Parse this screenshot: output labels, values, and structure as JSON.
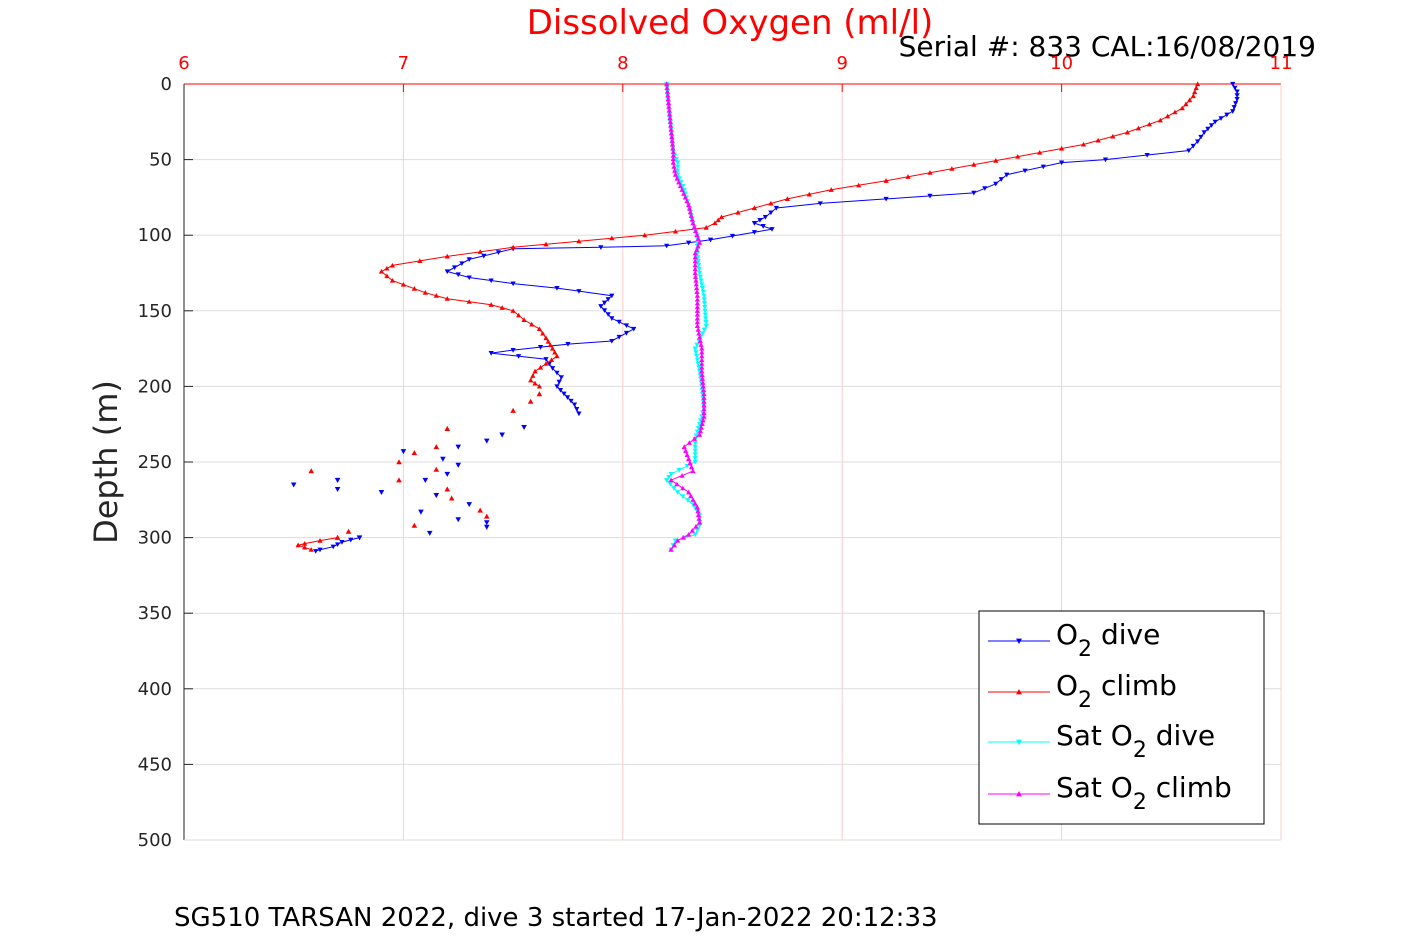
{
  "chart_data": {
    "type": "line",
    "title": "Dissolved Oxygen (ml/l)",
    "subtitle": "Serial #: 833  CAL:16/08/2019",
    "caption": "SG510 TARSAN 2022, dive 3 started 17-Jan-2022 20:12:33",
    "ylabel": "Depth (m)",
    "xlim": [
      6,
      11
    ],
    "ylim": [
      0,
      500
    ],
    "y_reversed": true,
    "x_axis_position": "top",
    "x_ticks": [
      "6",
      "7",
      "8",
      "9",
      "10",
      "11"
    ],
    "y_ticks": [
      "0",
      "50",
      "100",
      "150",
      "200",
      "250",
      "300",
      "350",
      "400",
      "450",
      "500"
    ],
    "grid": true,
    "legend_position": "bottom-right",
    "series": [
      {
        "name": "O2 dive",
        "legend_main": "O",
        "legend_sub": "2",
        "legend_rest": " dive",
        "color": "#0000ff",
        "marker": "triangle-down",
        "points": [
          [
            10.78,
            0
          ],
          [
            10.8,
            5
          ],
          [
            10.8,
            10
          ],
          [
            10.78,
            18
          ],
          [
            10.7,
            25
          ],
          [
            10.65,
            32
          ],
          [
            10.62,
            38
          ],
          [
            10.58,
            44
          ],
          [
            10.2,
            50
          ],
          [
            10.0,
            52
          ],
          [
            9.75,
            60
          ],
          [
            9.7,
            66
          ],
          [
            9.6,
            72
          ],
          [
            9.2,
            76
          ],
          [
            8.9,
            79
          ],
          [
            8.7,
            82
          ],
          [
            8.65,
            88
          ],
          [
            8.6,
            92
          ],
          [
            8.68,
            96
          ],
          [
            8.6,
            98
          ],
          [
            8.4,
            103
          ],
          [
            8.2,
            107
          ],
          [
            7.9,
            108
          ],
          [
            7.5,
            109
          ],
          [
            7.3,
            116
          ],
          [
            7.2,
            124
          ],
          [
            7.3,
            128
          ],
          [
            7.5,
            132
          ],
          [
            7.7,
            135
          ],
          [
            7.8,
            137
          ],
          [
            7.95,
            140
          ],
          [
            7.9,
            147
          ],
          [
            7.95,
            155
          ],
          [
            8.05,
            162
          ],
          [
            7.95,
            170
          ],
          [
            7.75,
            172
          ],
          [
            7.5,
            176
          ],
          [
            7.4,
            178
          ],
          [
            7.65,
            182
          ],
          [
            7.68,
            188
          ],
          [
            7.72,
            194
          ],
          [
            7.7,
            200
          ],
          [
            7.78,
            212
          ],
          [
            7.8,
            218
          ]
        ],
        "scatter": [
          [
            7.55,
            227
          ],
          [
            7.45,
            232
          ],
          [
            7.38,
            236
          ],
          [
            7.25,
            240
          ],
          [
            7.0,
            243
          ],
          [
            7.18,
            248
          ],
          [
            7.25,
            252
          ],
          [
            7.2,
            258
          ],
          [
            7.1,
            262
          ],
          [
            6.7,
            262
          ],
          [
            6.5,
            265
          ],
          [
            6.7,
            268
          ],
          [
            6.9,
            270
          ],
          [
            7.15,
            272
          ],
          [
            7.3,
            278
          ],
          [
            7.08,
            283
          ],
          [
            7.25,
            288
          ],
          [
            7.38,
            290
          ],
          [
            7.38,
            293
          ],
          [
            7.12,
            297
          ],
          [
            6.8,
            300
          ]
        ],
        "tail": [
          [
            6.8,
            300
          ],
          [
            6.72,
            303
          ],
          [
            6.68,
            306
          ],
          [
            6.62,
            308
          ],
          [
            6.6,
            309
          ]
        ]
      },
      {
        "name": "O2 climb",
        "legend_main": "O",
        "legend_sub": "2",
        "legend_rest": " climb",
        "color": "#ff0000",
        "marker": "triangle-up",
        "points": [
          [
            10.62,
            0
          ],
          [
            10.6,
            8
          ],
          [
            10.55,
            16
          ],
          [
            10.45,
            24
          ],
          [
            10.3,
            32
          ],
          [
            10.1,
            40
          ],
          [
            9.8,
            48
          ],
          [
            9.5,
            56
          ],
          [
            9.2,
            64
          ],
          [
            8.95,
            70
          ],
          [
            8.75,
            76
          ],
          [
            8.6,
            82
          ],
          [
            8.45,
            88
          ],
          [
            8.42,
            92
          ],
          [
            8.38,
            95
          ],
          [
            8.1,
            100
          ],
          [
            7.8,
            104
          ],
          [
            7.5,
            108
          ],
          [
            7.2,
            114
          ],
          [
            6.95,
            120
          ],
          [
            6.9,
            124
          ],
          [
            6.95,
            130
          ],
          [
            7.1,
            138
          ],
          [
            7.2,
            142
          ],
          [
            7.4,
            146
          ],
          [
            7.5,
            150
          ],
          [
            7.55,
            156
          ],
          [
            7.62,
            162
          ],
          [
            7.65,
            168
          ],
          [
            7.68,
            175
          ],
          [
            7.7,
            180
          ],
          [
            7.65,
            185
          ],
          [
            7.6,
            190
          ],
          [
            7.58,
            196
          ],
          [
            7.62,
            200
          ]
        ],
        "scatter": [
          [
            7.62,
            205
          ],
          [
            7.58,
            210
          ],
          [
            7.5,
            216
          ],
          [
            7.2,
            228
          ],
          [
            7.15,
            240
          ],
          [
            7.05,
            244
          ],
          [
            6.98,
            250
          ],
          [
            7.15,
            255
          ],
          [
            6.58,
            256
          ],
          [
            6.98,
            262
          ],
          [
            7.2,
            268
          ],
          [
            7.22,
            274
          ],
          [
            7.35,
            282
          ],
          [
            7.38,
            286
          ],
          [
            7.05,
            292
          ],
          [
            6.75,
            296
          ],
          [
            6.7,
            300
          ]
        ],
        "tail": [
          [
            6.7,
            300
          ],
          [
            6.62,
            302
          ],
          [
            6.55,
            304
          ],
          [
            6.52,
            305
          ],
          [
            6.58,
            308
          ]
        ]
      },
      {
        "name": "Sat O2 dive",
        "legend_main": "Sat O",
        "legend_sub": "2",
        "legend_rest": " dive",
        "color": "#00ffff",
        "marker": "triangle-down",
        "points": [
          [
            8.2,
            0
          ],
          [
            8.21,
            15
          ],
          [
            8.22,
            30
          ],
          [
            8.23,
            45
          ],
          [
            8.25,
            52
          ],
          [
            8.25,
            60
          ],
          [
            8.28,
            70
          ],
          [
            8.3,
            80
          ],
          [
            8.32,
            92
          ],
          [
            8.34,
            100
          ],
          [
            8.34,
            112
          ],
          [
            8.35,
            125
          ],
          [
            8.37,
            140
          ],
          [
            8.38,
            160
          ],
          [
            8.33,
            175
          ],
          [
            8.35,
            190
          ],
          [
            8.36,
            200
          ],
          [
            8.37,
            215
          ],
          [
            8.33,
            235
          ],
          [
            8.33,
            250
          ],
          [
            8.22,
            258
          ],
          [
            8.2,
            262
          ],
          [
            8.25,
            270
          ],
          [
            8.32,
            278
          ],
          [
            8.35,
            285
          ],
          [
            8.35,
            292
          ],
          [
            8.33,
            298
          ],
          [
            8.24,
            302
          ],
          [
            8.22,
            308
          ]
        ]
      },
      {
        "name": "Sat O2 climb",
        "legend_main": "Sat O",
        "legend_sub": "2",
        "legend_rest": " climb",
        "color": "#ff00ff",
        "marker": "triangle-up",
        "points": [
          [
            8.2,
            0
          ],
          [
            8.21,
            15
          ],
          [
            8.22,
            30
          ],
          [
            8.23,
            45
          ],
          [
            8.23,
            52
          ],
          [
            8.24,
            60
          ],
          [
            8.27,
            70
          ],
          [
            8.3,
            80
          ],
          [
            8.32,
            92
          ],
          [
            8.35,
            105
          ],
          [
            8.33,
            112
          ],
          [
            8.33,
            125
          ],
          [
            8.34,
            140
          ],
          [
            8.34,
            160
          ],
          [
            8.36,
            175
          ],
          [
            8.36,
            190
          ],
          [
            8.37,
            205
          ],
          [
            8.37,
            220
          ],
          [
            8.35,
            232
          ],
          [
            8.28,
            240
          ],
          [
            8.3,
            248
          ],
          [
            8.32,
            256
          ],
          [
            8.22,
            262
          ],
          [
            8.3,
            270
          ],
          [
            8.34,
            280
          ],
          [
            8.35,
            290
          ],
          [
            8.3,
            298
          ],
          [
            8.25,
            302
          ],
          [
            8.22,
            308
          ]
        ]
      }
    ]
  }
}
